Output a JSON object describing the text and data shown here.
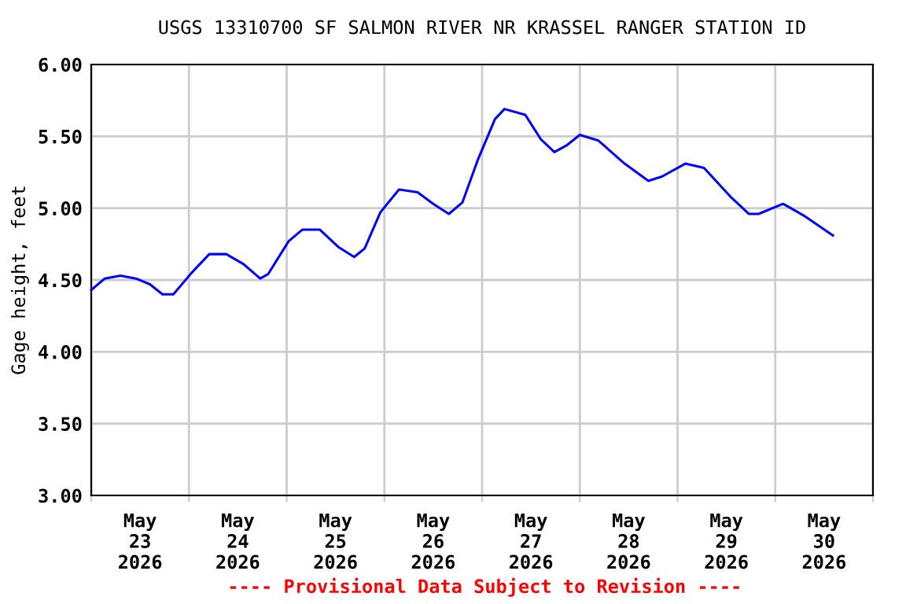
{
  "chart_data": {
    "type": "line",
    "title": "USGS 13310700 SF SALMON RIVER NR KRASSEL RANGER STATION ID",
    "ylabel": "Gage height, feet",
    "annotations": [
      "---- Provisional Data Subject to Revision ----"
    ],
    "series": [
      {
        "color": "#0000ff",
        "x": [
          "2026-05-23T00:00",
          "2026-05-23T03:20",
          "2026-05-23T07:10",
          "2026-05-23T11:00",
          "2026-05-23T14:25",
          "2026-05-23T17:30",
          "2026-05-23T20:10",
          "2026-05-24T00:40",
          "2026-05-24T05:00",
          "2026-05-24T09:10",
          "2026-05-24T13:25",
          "2026-05-24T17:30",
          "2026-05-24T19:25",
          "2026-05-25T00:30",
          "2026-05-25T03:50",
          "2026-05-25T08:10",
          "2026-05-25T12:40",
          "2026-05-25T16:35",
          "2026-05-25T19:10",
          "2026-05-25T23:00",
          "2026-05-26T03:35",
          "2026-05-26T08:10",
          "2026-05-26T12:00",
          "2026-05-26T15:50",
          "2026-05-26T19:10",
          "2026-05-26T23:00",
          "2026-05-27T03:10",
          "2026-05-27T05:30",
          "2026-05-27T10:35",
          "2026-05-27T14:25",
          "2026-05-27T17:45",
          "2026-05-27T20:55",
          "2026-05-28T00:00",
          "2026-05-28T04:35",
          "2026-05-28T11:00",
          "2026-05-28T16:50",
          "2026-05-28T20:10",
          "2026-05-29T01:55",
          "2026-05-29T06:30",
          "2026-05-29T13:00",
          "2026-05-29T17:30",
          "2026-05-29T19:55",
          "2026-05-30T01:55",
          "2026-05-30T06:55",
          "2026-05-30T14:10"
        ],
        "values": [
          4.43,
          4.51,
          4.53,
          4.51,
          4.47,
          4.4,
          4.4,
          4.55,
          4.68,
          4.68,
          4.61,
          4.51,
          4.54,
          4.77,
          4.85,
          4.85,
          4.73,
          4.66,
          4.72,
          4.97,
          5.13,
          5.11,
          5.03,
          4.96,
          5.04,
          5.34,
          5.62,
          5.69,
          5.65,
          5.48,
          5.39,
          5.44,
          5.51,
          5.47,
          5.31,
          5.19,
          5.22,
          5.31,
          5.28,
          5.08,
          4.96,
          4.96,
          5.03,
          4.95,
          4.81
        ]
      }
    ],
    "xlim": [
      "2026-05-23T00:00",
      "2026-05-31T00:00"
    ],
    "xticks": [
      {
        "value": "2026-05-23T00:00",
        "label": null
      },
      {
        "value": "2026-05-23T12:00",
        "label": "May\n23\n2026"
      },
      {
        "value": "2026-05-24T00:00",
        "label": null
      },
      {
        "value": "2026-05-24T12:00",
        "label": "May\n24\n2026"
      },
      {
        "value": "2026-05-25T00:00",
        "label": null
      },
      {
        "value": "2026-05-25T12:00",
        "label": "May\n25\n2026"
      },
      {
        "value": "2026-05-26T00:00",
        "label": null
      },
      {
        "value": "2026-05-26T12:00",
        "label": "May\n26\n2026"
      },
      {
        "value": "2026-05-27T00:00",
        "label": null
      },
      {
        "value": "2026-05-27T12:00",
        "label": "May\n27\n2026"
      },
      {
        "value": "2026-05-28T00:00",
        "label": null
      },
      {
        "value": "2026-05-28T12:00",
        "label": "May\n28\n2026"
      },
      {
        "value": "2026-05-29T00:00",
        "label": null
      },
      {
        "value": "2026-05-29T12:00",
        "label": "May\n29\n2026"
      },
      {
        "value": "2026-05-30T00:00",
        "label": null
      },
      {
        "value": "2026-05-30T12:00",
        "label": "May\n30\n2026"
      },
      {
        "value": "2026-05-31T00:00",
        "label": null
      }
    ],
    "ylim": [
      3.0,
      6.0
    ],
    "yticks": [
      {
        "value": 3.0,
        "label": "3.00"
      },
      {
        "value": 3.5,
        "label": "3.50"
      },
      {
        "value": 4.0,
        "label": "4.00"
      },
      {
        "value": 4.5,
        "label": "4.50"
      },
      {
        "value": 5.0,
        "label": "5.00"
      },
      {
        "value": 5.5,
        "label": "5.50"
      },
      {
        "value": 6.0,
        "label": "6.00"
      }
    ],
    "grid": true
  }
}
